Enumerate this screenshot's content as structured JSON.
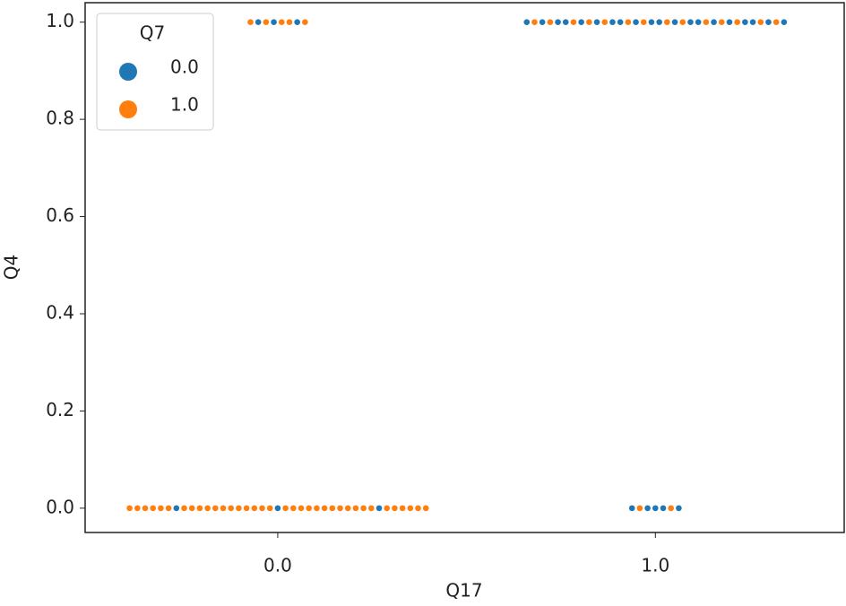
{
  "chart_data": {
    "type": "swarm",
    "x_label": "Q17",
    "y_label": "Q4",
    "xlim": [
      -0.51,
      1.5
    ],
    "ylim": [
      -0.05,
      1.04
    ],
    "xticks": [
      {
        "value": 0,
        "label": "0.0"
      },
      {
        "value": 1,
        "label": "1.0"
      }
    ],
    "yticks": [
      {
        "value": 0,
        "label": "0.0"
      },
      {
        "value": 0.2,
        "label": "0.2"
      },
      {
        "value": 0.4,
        "label": "0.4"
      },
      {
        "value": 0.6,
        "label": "0.6"
      },
      {
        "value": 0.8,
        "label": "0.8"
      },
      {
        "value": 1,
        "label": "1.0"
      }
    ],
    "legend_title": "Q7",
    "legend": "upper left",
    "series": [
      {
        "name": "0.0",
        "color": "#1f77b4",
        "x": [
          0,
          0,
          0,
          0,
          0,
          0,
          1,
          1,
          1,
          1,
          1,
          1,
          1,
          1,
          1,
          1,
          1,
          1,
          1,
          1,
          1,
          1,
          1,
          1,
          1,
          1,
          1,
          1,
          1,
          1,
          1
        ],
        "values": [
          0,
          0,
          0,
          1,
          1,
          1,
          1,
          1,
          1,
          1,
          1,
          1,
          1,
          1,
          1,
          1,
          1,
          1,
          1,
          1,
          1,
          1,
          1,
          1,
          1,
          1,
          0,
          0,
          0,
          0,
          0
        ]
      },
      {
        "name": "1.0",
        "color": "#ff7f0e",
        "x": [
          0,
          0,
          0,
          0,
          0,
          0,
          0,
          0,
          0,
          0,
          0,
          0,
          0,
          0,
          0,
          0,
          0,
          0,
          0,
          0,
          0,
          0,
          0,
          0,
          0,
          0,
          0,
          0,
          0,
          0,
          0,
          0,
          0,
          0,
          0,
          0,
          0,
          0,
          0,
          0,
          0,
          1,
          1,
          1,
          1,
          1,
          1,
          1,
          1,
          1,
          1,
          1,
          1,
          1,
          1,
          1,
          1
        ],
        "values": [
          0,
          0,
          0,
          0,
          0,
          0,
          0,
          0,
          0,
          0,
          0,
          0,
          0,
          0,
          0,
          0,
          0,
          0,
          0,
          0,
          0,
          0,
          0,
          0,
          0,
          0,
          0,
          0,
          0,
          0,
          0,
          0,
          0,
          0,
          0,
          0,
          1,
          1,
          1,
          1,
          1,
          1,
          1,
          1,
          1,
          1,
          1,
          1,
          1,
          1,
          1,
          1,
          1,
          1,
          1,
          0,
          0
        ]
      }
    ]
  }
}
